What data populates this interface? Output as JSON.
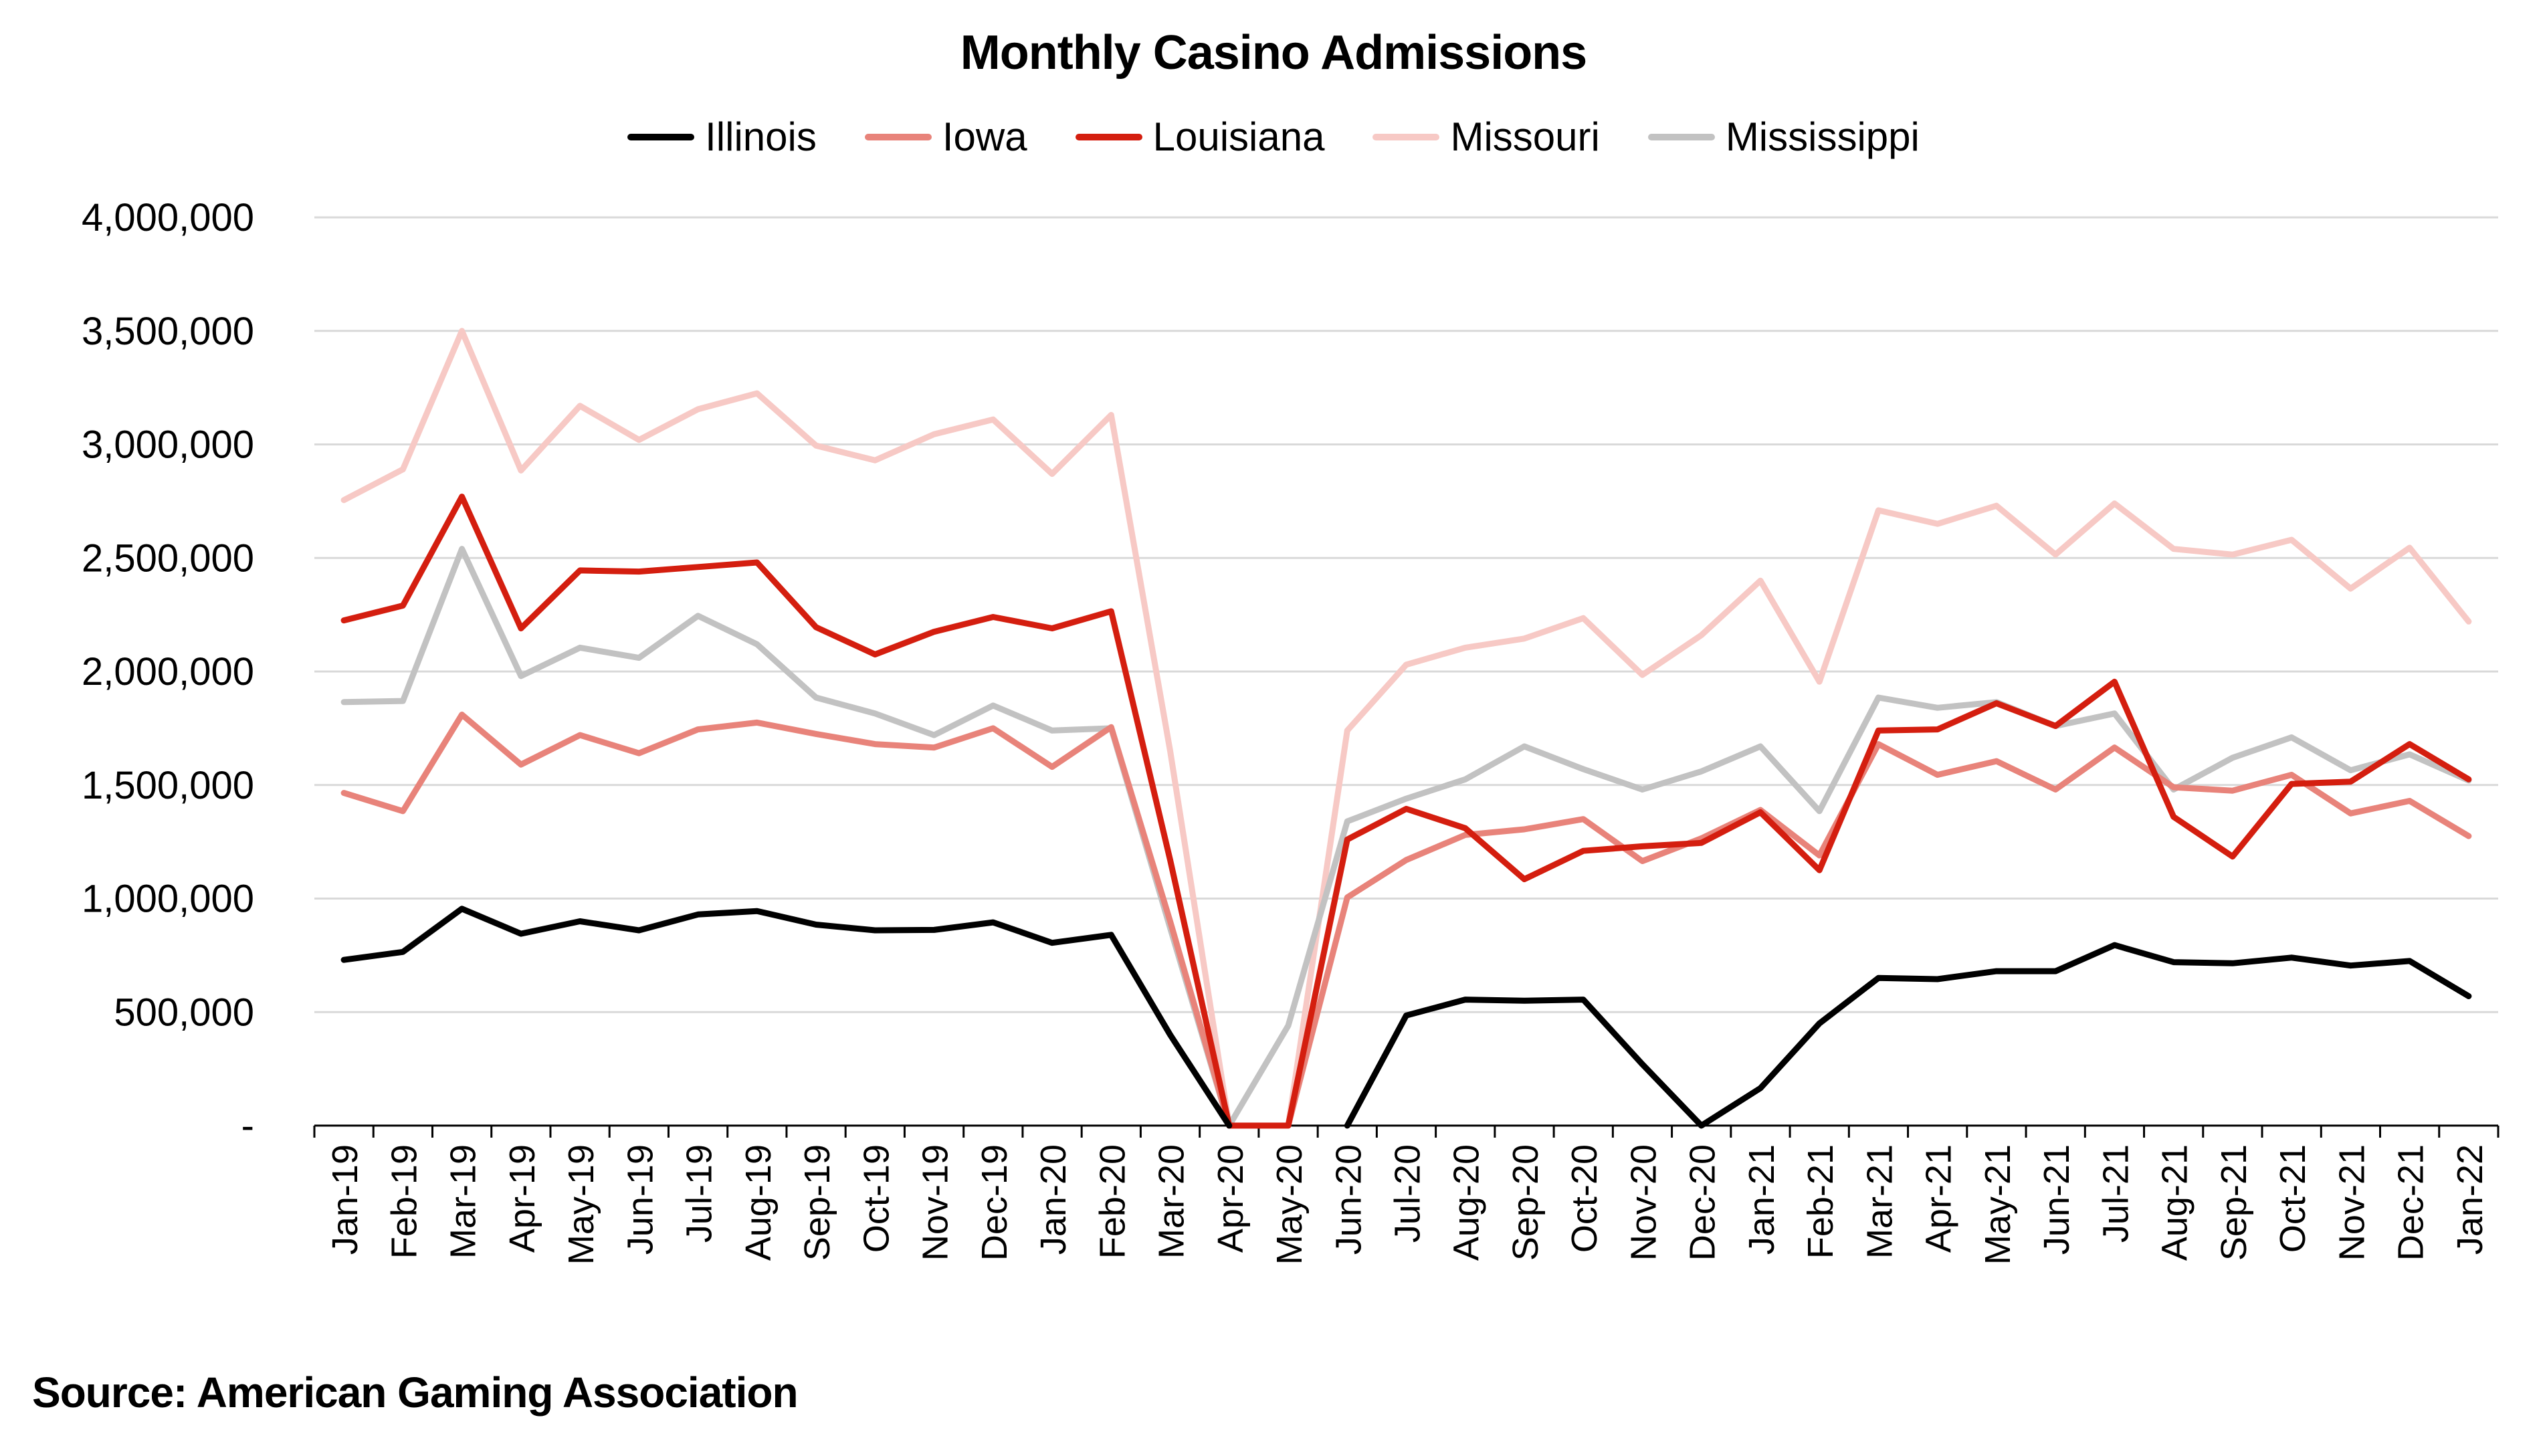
{
  "colors": {
    "illinois": "#000000",
    "iowa": "#e8837a",
    "louisiana": "#d41e0f",
    "missouri": "#f7c9c5",
    "mississippi": "#c2c2c2",
    "grid": "#d9d9d9",
    "axis": "#000000"
  },
  "source": "Source: American Gaming Association",
  "chart_data": {
    "type": "line",
    "title": "Monthly Casino Admissions",
    "xlabel": "",
    "ylabel": "",
    "ylim": [
      0,
      4000000
    ],
    "grid": true,
    "legend_position": "top",
    "y_ticks": [
      0,
      500000,
      1000000,
      1500000,
      2000000,
      2500000,
      3000000,
      3500000,
      4000000
    ],
    "y_tick_labels": [
      "-",
      "500,000",
      "1,000,000",
      "1,500,000",
      "2,000,000",
      "2,500,000",
      "3,000,000",
      "3,500,000",
      "4,000,000"
    ],
    "categories": [
      "Jan-19",
      "Feb-19",
      "Mar-19",
      "Apr-19",
      "May-19",
      "Jun-19",
      "Jul-19",
      "Aug-19",
      "Sep-19",
      "Oct-19",
      "Nov-19",
      "Dec-19",
      "Jan-20",
      "Feb-20",
      "Mar-20",
      "Apr-20",
      "May-20",
      "Jun-20",
      "Jul-20",
      "Aug-20",
      "Sep-20",
      "Oct-20",
      "Nov-20",
      "Dec-20",
      "Jan-21",
      "Feb-21",
      "Mar-21",
      "Apr-21",
      "May-21",
      "Jun-21",
      "Jul-21",
      "Aug-21",
      "Sep-21",
      "Oct-21",
      "Nov-21",
      "Dec-21",
      "Jan-22"
    ],
    "series": [
      {
        "name": "Illinois",
        "color_key": "illinois",
        "values": [
          730000,
          765000,
          955000,
          845000,
          900000,
          860000,
          930000,
          945000,
          885000,
          860000,
          862000,
          895000,
          805000,
          840000,
          400000,
          0,
          null,
          0,
          485000,
          555000,
          550000,
          555000,
          270000,
          0,
          165000,
          450000,
          650000,
          645000,
          680000,
          680000,
          795000,
          720000,
          715000,
          740000,
          705000,
          725000,
          570000
        ]
      },
      {
        "name": "Iowa",
        "color_key": "iowa",
        "values": [
          1465000,
          1385000,
          1810000,
          1590000,
          1720000,
          1640000,
          1745000,
          1775000,
          1725000,
          1680000,
          1665000,
          1750000,
          1580000,
          1755000,
          900000,
          0,
          0,
          1005000,
          1170000,
          1280000,
          1305000,
          1350000,
          1165000,
          1265000,
          1390000,
          1190000,
          1680000,
          1545000,
          1605000,
          1480000,
          1665000,
          1490000,
          1475000,
          1545000,
          1375000,
          1430000,
          1275000
        ]
      },
      {
        "name": "Louisiana",
        "color_key": "louisiana",
        "values": [
          2225000,
          2290000,
          2770000,
          2190000,
          2445000,
          2440000,
          2460000,
          2480000,
          2195000,
          2075000,
          2175000,
          2240000,
          2190000,
          2265000,
          1170000,
          0,
          0,
          1260000,
          1395000,
          1310000,
          1085000,
          1210000,
          1230000,
          1245000,
          1380000,
          1125000,
          1740000,
          1745000,
          1860000,
          1760000,
          1955000,
          1360000,
          1185000,
          1505000,
          1515000,
          1680000,
          1525000
        ]
      },
      {
        "name": "Missouri",
        "color_key": "missouri",
        "values": [
          2755000,
          2890000,
          3500000,
          2885000,
          3170000,
          3020000,
          3155000,
          3225000,
          2995000,
          2930000,
          3045000,
          3110000,
          2870000,
          3130000,
          1650000,
          0,
          0,
          1740000,
          2030000,
          2105000,
          2145000,
          2235000,
          1985000,
          2160000,
          2400000,
          1955000,
          2710000,
          2650000,
          2730000,
          2515000,
          2740000,
          2540000,
          2515000,
          2580000,
          2365000,
          2545000,
          2220000
        ]
      },
      {
        "name": "Mississippi",
        "color_key": "mississippi",
        "values": [
          1865000,
          1870000,
          2540000,
          1980000,
          2105000,
          2060000,
          2245000,
          2120000,
          1885000,
          1815000,
          1720000,
          1850000,
          1740000,
          1750000,
          870000,
          0,
          440000,
          1340000,
          1440000,
          1525000,
          1670000,
          1570000,
          1480000,
          1560000,
          1670000,
          1385000,
          1885000,
          1840000,
          1865000,
          1760000,
          1815000,
          1480000,
          1620000,
          1710000,
          1565000,
          1635000,
          1520000
        ]
      }
    ]
  }
}
